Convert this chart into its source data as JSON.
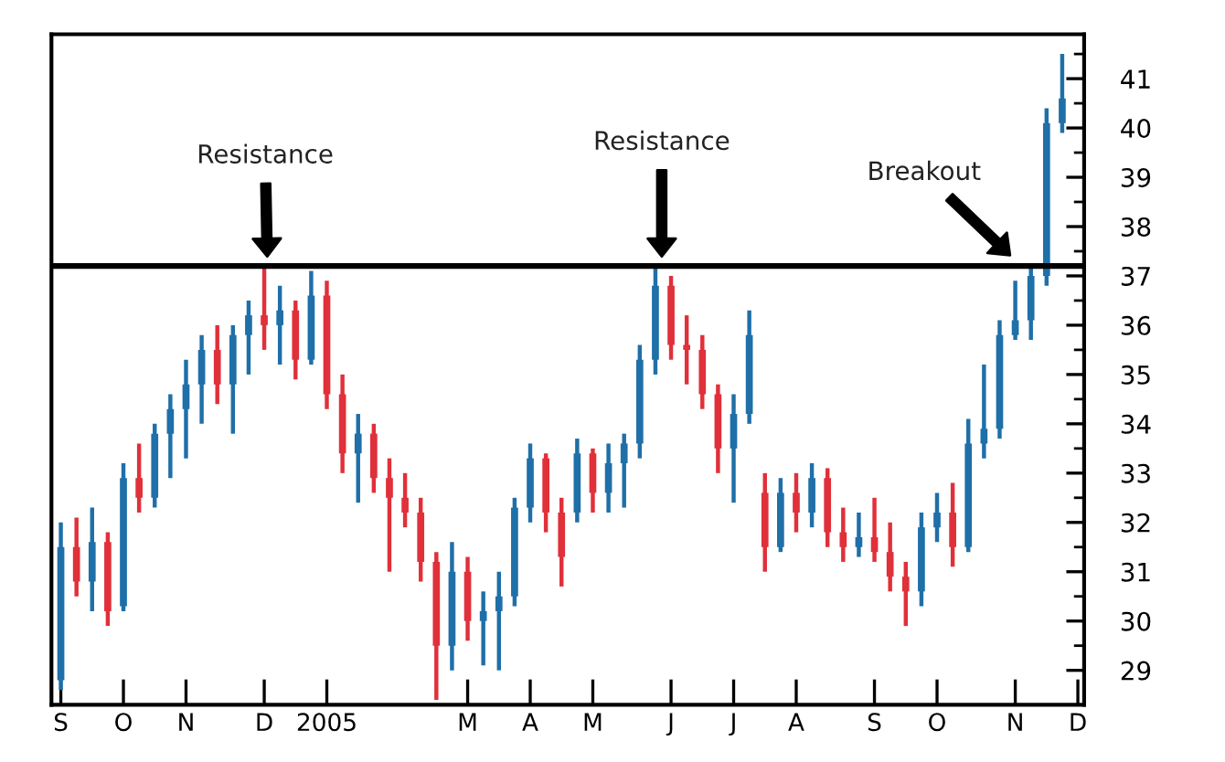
{
  "chart_data": {
    "type": "candlestick",
    "categories": [
      "S",
      null,
      null,
      null,
      "O",
      null,
      null,
      null,
      "N",
      null,
      null,
      null,
      null,
      "D",
      null,
      null,
      null,
      "2005",
      null,
      null,
      null,
      null,
      null,
      null,
      null,
      null,
      "M",
      null,
      null,
      null,
      "A",
      null,
      null,
      null,
      "M",
      null,
      null,
      null,
      null,
      "J",
      null,
      null,
      null,
      "J",
      null,
      null,
      null,
      "A",
      null,
      null,
      null,
      null,
      "S",
      null,
      null,
      null,
      "O",
      null,
      null,
      null,
      null,
      "N",
      null,
      null,
      null,
      "D"
    ],
    "ohlc": [
      [
        28.8,
        32.0,
        28.6,
        31.5
      ],
      [
        31.5,
        32.1,
        30.5,
        30.8
      ],
      [
        30.8,
        32.3,
        30.2,
        31.6
      ],
      [
        31.6,
        31.8,
        29.9,
        30.2
      ],
      [
        30.3,
        33.2,
        30.2,
        32.9
      ],
      [
        32.9,
        33.6,
        32.2,
        32.5
      ],
      [
        32.5,
        34.0,
        32.3,
        33.8
      ],
      [
        33.8,
        34.6,
        32.9,
        34.3
      ],
      [
        34.3,
        35.3,
        33.3,
        34.8
      ],
      [
        34.8,
        35.8,
        34.0,
        35.5
      ],
      [
        35.5,
        36.0,
        34.4,
        34.8
      ],
      [
        34.8,
        36.0,
        33.8,
        35.8
      ],
      [
        35.8,
        36.5,
        35.0,
        36.2
      ],
      [
        36.2,
        37.2,
        35.5,
        36.0
      ],
      [
        36.0,
        36.8,
        35.2,
        36.3
      ],
      [
        36.3,
        36.5,
        34.9,
        35.3
      ],
      [
        35.3,
        37.1,
        35.2,
        36.6
      ],
      [
        36.6,
        36.9,
        34.3,
        34.6
      ],
      [
        34.6,
        35.0,
        33.0,
        33.4
      ],
      [
        33.4,
        34.2,
        32.4,
        33.8
      ],
      [
        33.8,
        34.0,
        32.6,
        32.9
      ],
      [
        32.9,
        33.3,
        31.0,
        32.5
      ],
      [
        32.5,
        33.0,
        31.9,
        32.2
      ],
      [
        32.2,
        32.5,
        30.8,
        31.2
      ],
      [
        31.2,
        31.4,
        28.4,
        29.5
      ],
      [
        29.5,
        31.6,
        29.0,
        31.0
      ],
      [
        31.0,
        31.3,
        29.6,
        30.0
      ],
      [
        30.0,
        30.6,
        29.1,
        30.2
      ],
      [
        30.2,
        31.0,
        29.0,
        30.5
      ],
      [
        30.5,
        32.5,
        30.3,
        32.3
      ],
      [
        32.3,
        33.6,
        32.0,
        33.3
      ],
      [
        33.3,
        33.4,
        31.8,
        32.2
      ],
      [
        32.2,
        32.5,
        30.7,
        31.3
      ],
      [
        32.2,
        33.7,
        32.0,
        33.4
      ],
      [
        33.4,
        33.5,
        32.2,
        32.6
      ],
      [
        32.6,
        33.6,
        32.2,
        33.2
      ],
      [
        33.2,
        33.8,
        32.3,
        33.6
      ],
      [
        33.6,
        35.6,
        33.3,
        35.3
      ],
      [
        35.3,
        37.2,
        35.0,
        36.8
      ],
      [
        36.8,
        37.0,
        35.3,
        35.6
      ],
      [
        35.6,
        36.2,
        34.8,
        35.5
      ],
      [
        35.5,
        35.8,
        34.3,
        34.6
      ],
      [
        34.6,
        34.8,
        33.0,
        33.5
      ],
      [
        33.5,
        34.6,
        32.4,
        34.2
      ],
      [
        34.2,
        36.3,
        34.0,
        35.8
      ],
      [
        32.6,
        33.0,
        31.0,
        31.5
      ],
      [
        31.5,
        32.9,
        31.4,
        32.6
      ],
      [
        32.6,
        33.0,
        31.8,
        32.2
      ],
      [
        32.2,
        33.2,
        31.9,
        32.9
      ],
      [
        32.9,
        33.1,
        31.5,
        31.8
      ],
      [
        31.8,
        32.3,
        31.2,
        31.5
      ],
      [
        31.5,
        32.2,
        31.3,
        31.7
      ],
      [
        31.7,
        32.5,
        31.2,
        31.4
      ],
      [
        31.4,
        32.0,
        30.6,
        30.9
      ],
      [
        30.9,
        31.2,
        29.9,
        30.6
      ],
      [
        30.6,
        32.2,
        30.3,
        31.9
      ],
      [
        31.9,
        32.6,
        31.6,
        32.2
      ],
      [
        32.2,
        32.8,
        31.1,
        31.5
      ],
      [
        31.5,
        34.1,
        31.4,
        33.6
      ],
      [
        33.6,
        35.2,
        33.3,
        33.9
      ],
      [
        33.9,
        36.1,
        33.7,
        35.8
      ],
      [
        35.8,
        36.9,
        35.7,
        36.1
      ],
      [
        36.1,
        37.2,
        35.7,
        37.0
      ],
      [
        37.0,
        40.4,
        36.8,
        40.1
      ],
      [
        40.1,
        41.5,
        39.9,
        40.6
      ],
      null
    ],
    "colors": [
      "#1f6fa8",
      "#e0303a",
      "#1f6fa8",
      "#e0303a",
      "#1f6fa8",
      "#e0303a",
      "#1f6fa8",
      "#1f6fa8",
      "#1f6fa8",
      "#1f6fa8",
      "#e0303a",
      "#1f6fa8",
      "#1f6fa8",
      "#e0303a",
      "#1f6fa8",
      "#e0303a",
      "#1f6fa8",
      "#e0303a",
      "#e0303a",
      "#1f6fa8",
      "#e0303a",
      "#e0303a",
      "#e0303a",
      "#e0303a",
      "#e0303a",
      "#1f6fa8",
      "#e0303a",
      "#1f6fa8",
      "#1f6fa8",
      "#1f6fa8",
      "#1f6fa8",
      "#e0303a",
      "#e0303a",
      "#1f6fa8",
      "#e0303a",
      "#1f6fa8",
      "#1f6fa8",
      "#1f6fa8",
      "#1f6fa8",
      "#e0303a",
      "#e0303a",
      "#e0303a",
      "#e0303a",
      "#1f6fa8",
      "#1f6fa8",
      "#e0303a",
      "#1f6fa8",
      "#e0303a",
      "#1f6fa8",
      "#e0303a",
      "#e0303a",
      "#1f6fa8",
      "#e0303a",
      "#e0303a",
      "#e0303a",
      "#1f6fa8",
      "#1f6fa8",
      "#e0303a",
      "#1f6fa8",
      "#1f6fa8",
      "#1f6fa8",
      "#1f6fa8",
      "#1f6fa8",
      "#1f6fa8",
      "#1f6fa8",
      null
    ],
    "ylim": [
      28.3,
      41.9
    ],
    "yticks": [
      29,
      30,
      31,
      32,
      33,
      34,
      35,
      36,
      37,
      38,
      39,
      40,
      41
    ],
    "ref_lines": [
      {
        "axis": "y",
        "value": 37.2,
        "color": "#000000"
      }
    ],
    "annotations": [
      "Resistance",
      "Resistance",
      "Breakout"
    ],
    "grid": false,
    "legend": false
  }
}
